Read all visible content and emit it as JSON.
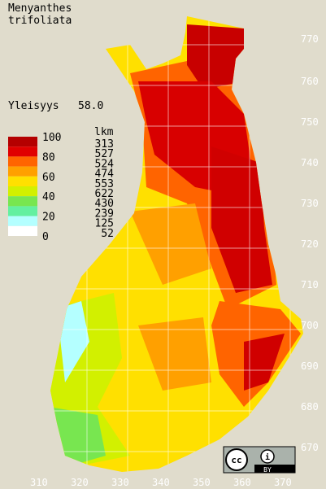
{
  "title": [
    "Menyanthes",
    "trifoliata"
  ],
  "frequency": {
    "label": "Yleisyys",
    "value": "58.0"
  },
  "legend": {
    "scale": [
      "100",
      "80",
      "60",
      "40",
      "20",
      "0"
    ],
    "count_label": "lkm",
    "counts": [
      "313",
      "527",
      "524",
      "474",
      "553",
      "622",
      "430",
      "239",
      "125",
      "52"
    ]
  },
  "axes": {
    "y": [
      "770",
      "760",
      "750",
      "740",
      "730",
      "720",
      "710",
      "700",
      "690",
      "680",
      "670"
    ],
    "x": [
      "310",
      "320",
      "330",
      "340",
      "350",
      "360",
      "370"
    ]
  },
  "license": "BY"
}
